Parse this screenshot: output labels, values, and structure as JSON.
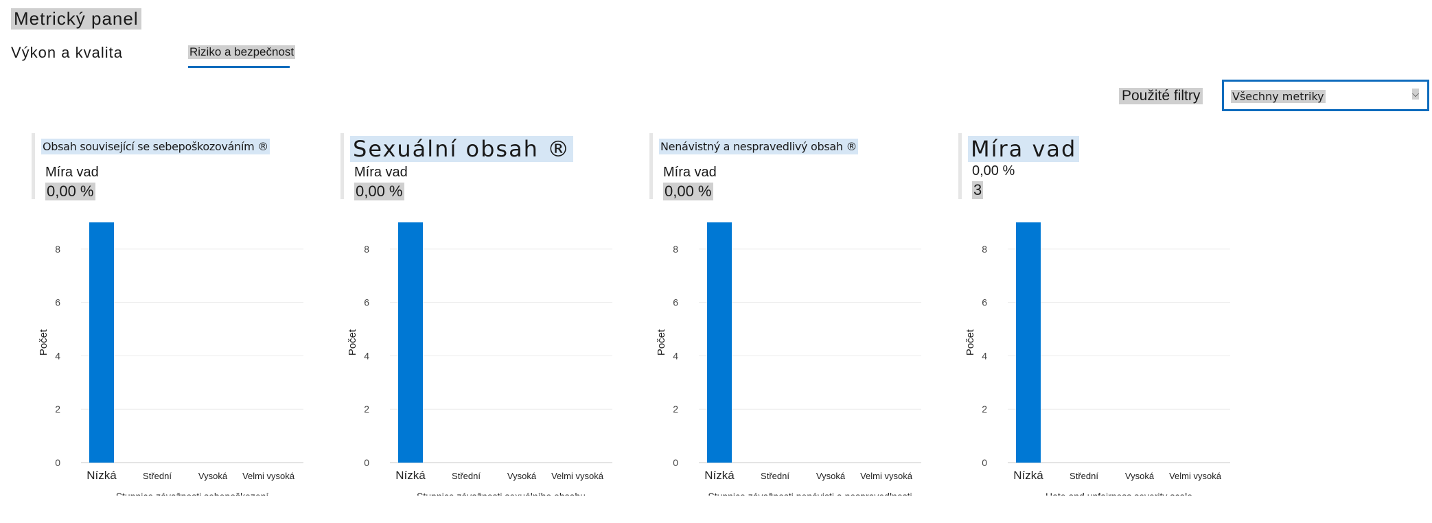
{
  "header": {
    "title": "Metrický panel",
    "tabs": [
      {
        "label": "Výkon a kvalita",
        "selected": false
      },
      {
        "label": "Riziko a bezpečnost",
        "selected": true
      }
    ]
  },
  "filters": {
    "label": "Použité filtry",
    "value": "Všechny metriky",
    "chevron_icon": "chevron-down-icon"
  },
  "colors": {
    "bar": "#0078d4",
    "accent": "#0f6cbd"
  },
  "panels": [
    {
      "title": "Obsah související se sebepoškozováním ®",
      "metric_label": "Míra vad",
      "metric_value": "0,00 %",
      "chart_data": {
        "type": "bar",
        "categories": [
          "Nízká",
          "Střední",
          "Vysoká",
          "Velmi vysoká"
        ],
        "values": [
          9,
          0,
          0,
          0
        ],
        "xlabel": "Stupnice závažnosti sebepoškození",
        "ylabel": "Počet",
        "ylim": [
          0,
          9
        ],
        "yticks": [
          0,
          2,
          4,
          6,
          8
        ]
      }
    },
    {
      "title": "Sexuální obsah ®",
      "metric_label": "Míra vad",
      "metric_value": "0,00 %",
      "chart_data": {
        "type": "bar",
        "categories": [
          "Nízká",
          "Střední",
          "Vysoká",
          "Velmi vysoká"
        ],
        "values": [
          9,
          0,
          0,
          0
        ],
        "xlabel": "Stupnice závažnosti sexuálního obsahu",
        "ylabel": "Počet",
        "ylim": [
          0,
          9
        ],
        "yticks": [
          0,
          2,
          4,
          6,
          8
        ]
      }
    },
    {
      "title": "Nenávistný a nespravedlivý obsah ®",
      "metric_label": "Míra vad",
      "metric_value": "0,00 %",
      "chart_data": {
        "type": "bar",
        "categories": [
          "Nízká",
          "Střední",
          "Vysoká",
          "Velmi vysoká"
        ],
        "values": [
          9,
          0,
          0,
          0
        ],
        "xlabel": "Stupnice závažnosti nenávisti a nespravedlnosti",
        "ylabel": "Počet",
        "ylim": [
          0,
          9
        ],
        "yticks": [
          0,
          2,
          4,
          6,
          8
        ]
      }
    },
    {
      "title": "Míra vad",
      "metric_label": "0,00 %",
      "metric_value": "3",
      "chart_data": {
        "type": "bar",
        "categories": [
          "Nízká",
          "Střední",
          "Vysoká",
          "Velmi vysoká"
        ],
        "values": [
          9,
          0,
          0,
          0
        ],
        "xlabel": "Hate and unfairness severity scale",
        "ylabel": "Počet",
        "ylim": [
          0,
          9
        ],
        "yticks": [
          0,
          2,
          4,
          6,
          8
        ]
      }
    }
  ]
}
